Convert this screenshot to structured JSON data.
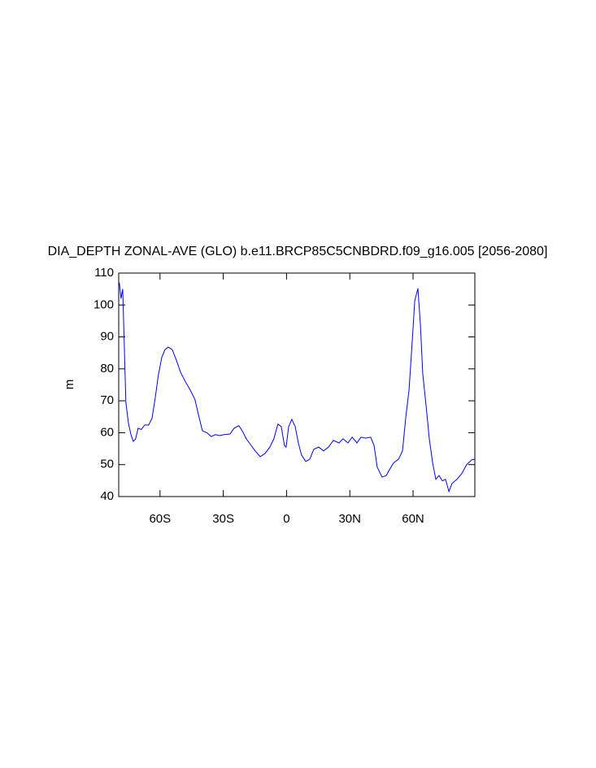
{
  "chart_data": {
    "type": "line",
    "title": "DIA_DEPTH ZONAL-AVE (GLO) b.e11.BRCP85C5CNBDRD.f09_g16.005 [2056-2080]",
    "ylabel": "m",
    "x": [
      -79.3,
      -78.5,
      -77.7,
      -77,
      -76.2,
      -75,
      -73.8,
      -72.7,
      -71.6,
      -70.4,
      -68.9,
      -67.3,
      -65.4,
      -63.8,
      -62.3,
      -60.8,
      -59.2,
      -57.7,
      -56.1,
      -54.2,
      -52.3,
      -50.3,
      -48,
      -45.7,
      -43.4,
      -41.8,
      -39.9,
      -37.6,
      -35.7,
      -33.8,
      -31.8,
      -29.5,
      -26.8,
      -24.9,
      -22.6,
      -21,
      -19.1,
      -16.8,
      -14.9,
      -12.5,
      -10.2,
      -7.9,
      -6,
      -4.1,
      -2.5,
      -1,
      -0.2,
      1,
      2.5,
      4.1,
      5.6,
      7.1,
      9.1,
      11,
      12.9,
      15.2,
      17.6,
      19.9,
      22.2,
      24.9,
      26.8,
      29.1,
      31.1,
      33.4,
      35.3,
      37.6,
      39.9,
      41.5,
      43,
      45.3,
      47.3,
      48.8,
      50.7,
      53.1,
      55,
      56.5,
      58.1,
      59.6,
      60.8,
      62.3,
      63.5,
      64.6,
      66.2,
      67.7,
      69.3,
      70.8,
      72.3,
      73.9,
      75.4,
      77,
      78.5,
      80.8,
      83.1,
      85.4,
      87.8,
      89.3
    ],
    "series": [
      {
        "color": "#0000ff",
        "values": [
          107,
          102,
          105,
          88.6,
          69.5,
          63,
          59.4,
          57.3,
          58,
          61.4,
          61,
          62.4,
          62.4,
          64.5,
          70.8,
          78,
          83.5,
          86,
          86.8,
          86,
          82.8,
          79,
          76,
          73.4,
          70.3,
          65.7,
          60.6,
          59.9,
          58.8,
          59.4,
          59.1,
          59.4,
          59.6,
          61.4,
          62.2,
          60.6,
          58.1,
          56,
          54.3,
          52.5,
          53.5,
          55.5,
          58.1,
          62.7,
          61.9,
          56,
          55.5,
          61.9,
          64.2,
          61.9,
          56.8,
          53,
          51,
          51.7,
          54.8,
          55.5,
          54.3,
          55.5,
          57.6,
          56.8,
          58.1,
          56.8,
          58.6,
          56.8,
          58.6,
          58.3,
          58.6,
          56,
          49.2,
          46.1,
          46.6,
          48.4,
          50.5,
          51.7,
          54.3,
          64.5,
          73.4,
          88.6,
          101.3,
          105.2,
          93.7,
          78.4,
          68.3,
          58.1,
          50.5,
          45.4,
          46.6,
          44.9,
          45.4,
          41.6,
          44.1,
          45.4,
          47.2,
          50,
          51.5,
          51.7
        ]
      }
    ],
    "xlim": [
      -79.6,
      89.3
    ],
    "xticks": [
      {
        "value": -60,
        "label": "60S"
      },
      {
        "value": -30,
        "label": "30S"
      },
      0,
      {
        "value": 30,
        "label": "30N"
      },
      {
        "value": 60,
        "label": "60N"
      }
    ],
    "ylim": [
      40,
      110
    ],
    "yticks": [
      40,
      50,
      60,
      70,
      80,
      90,
      100,
      110
    ]
  }
}
